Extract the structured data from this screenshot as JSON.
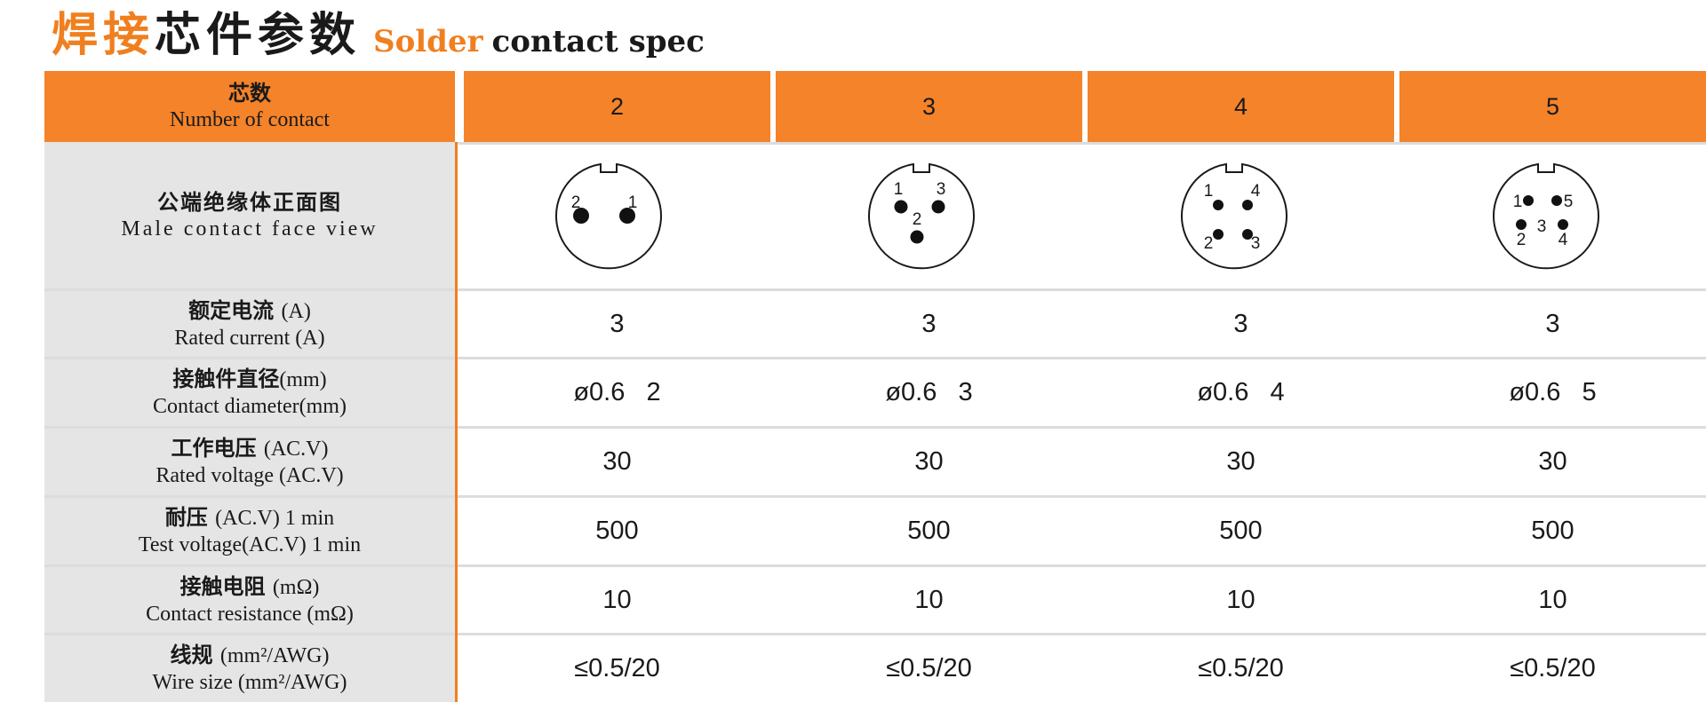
{
  "title": {
    "cn_highlight": "焊接",
    "cn_rest": "芯件参数",
    "en_highlight": "Solder",
    "en_rest": "contact spec"
  },
  "colors": {
    "accent": "#f4832a",
    "title_accent": "#f07f1f",
    "label_bg": "#e5e5e5",
    "divider": "#dcdcdc"
  },
  "header": {
    "label_cn": "芯数",
    "label_en": "Number of contact",
    "columns": [
      "2",
      "3",
      "4",
      "5"
    ]
  },
  "face_view": {
    "label_cn": "公端绝缘体正面图",
    "label_en": "Male contact face view",
    "diagrams": [
      {
        "pins": [
          "2",
          "1"
        ]
      },
      {
        "pins": [
          "1",
          "3",
          "2"
        ]
      },
      {
        "pins": [
          "1",
          "4",
          "2",
          "3"
        ]
      },
      {
        "pins": [
          "1",
          "5",
          "2",
          "3",
          "4"
        ]
      }
    ]
  },
  "rows": [
    {
      "label_cn": "额定电流",
      "label_cn_unit": "(A)",
      "label_en": "Rated current (A)",
      "values": [
        "3",
        "3",
        "3",
        "3"
      ]
    },
    {
      "label_cn": "接触件直径",
      "label_cn_unit": "(mm)",
      "label_en": "Contact diameter(mm)",
      "values": [
        "ø0.6   2",
        "ø0.6   3",
        "ø0.6   4",
        "ø0.6   5"
      ]
    },
    {
      "label_cn": "工作电压",
      "label_cn_unit": "(AC.V)",
      "label_en": "Rated voltage (AC.V)",
      "values": [
        "30",
        "30",
        "30",
        "30"
      ]
    },
    {
      "label_cn": "耐压",
      "label_cn_unit": "(AC.V) 1 min",
      "label_en": "Test voltage(AC.V) 1 min",
      "values": [
        "500",
        "500",
        "500",
        "500"
      ]
    },
    {
      "label_cn": "接触电阻",
      "label_cn_unit": "(mΩ)",
      "label_en": "Contact resistance (mΩ)",
      "values": [
        "10",
        "10",
        "10",
        "10"
      ]
    },
    {
      "label_cn": "线规",
      "label_cn_unit": "(mm²/AWG)",
      "label_en": "Wire size (mm²/AWG)",
      "values": [
        "≤0.5/20",
        "≤0.5/20",
        "≤0.5/20",
        "≤0.5/20"
      ]
    }
  ]
}
